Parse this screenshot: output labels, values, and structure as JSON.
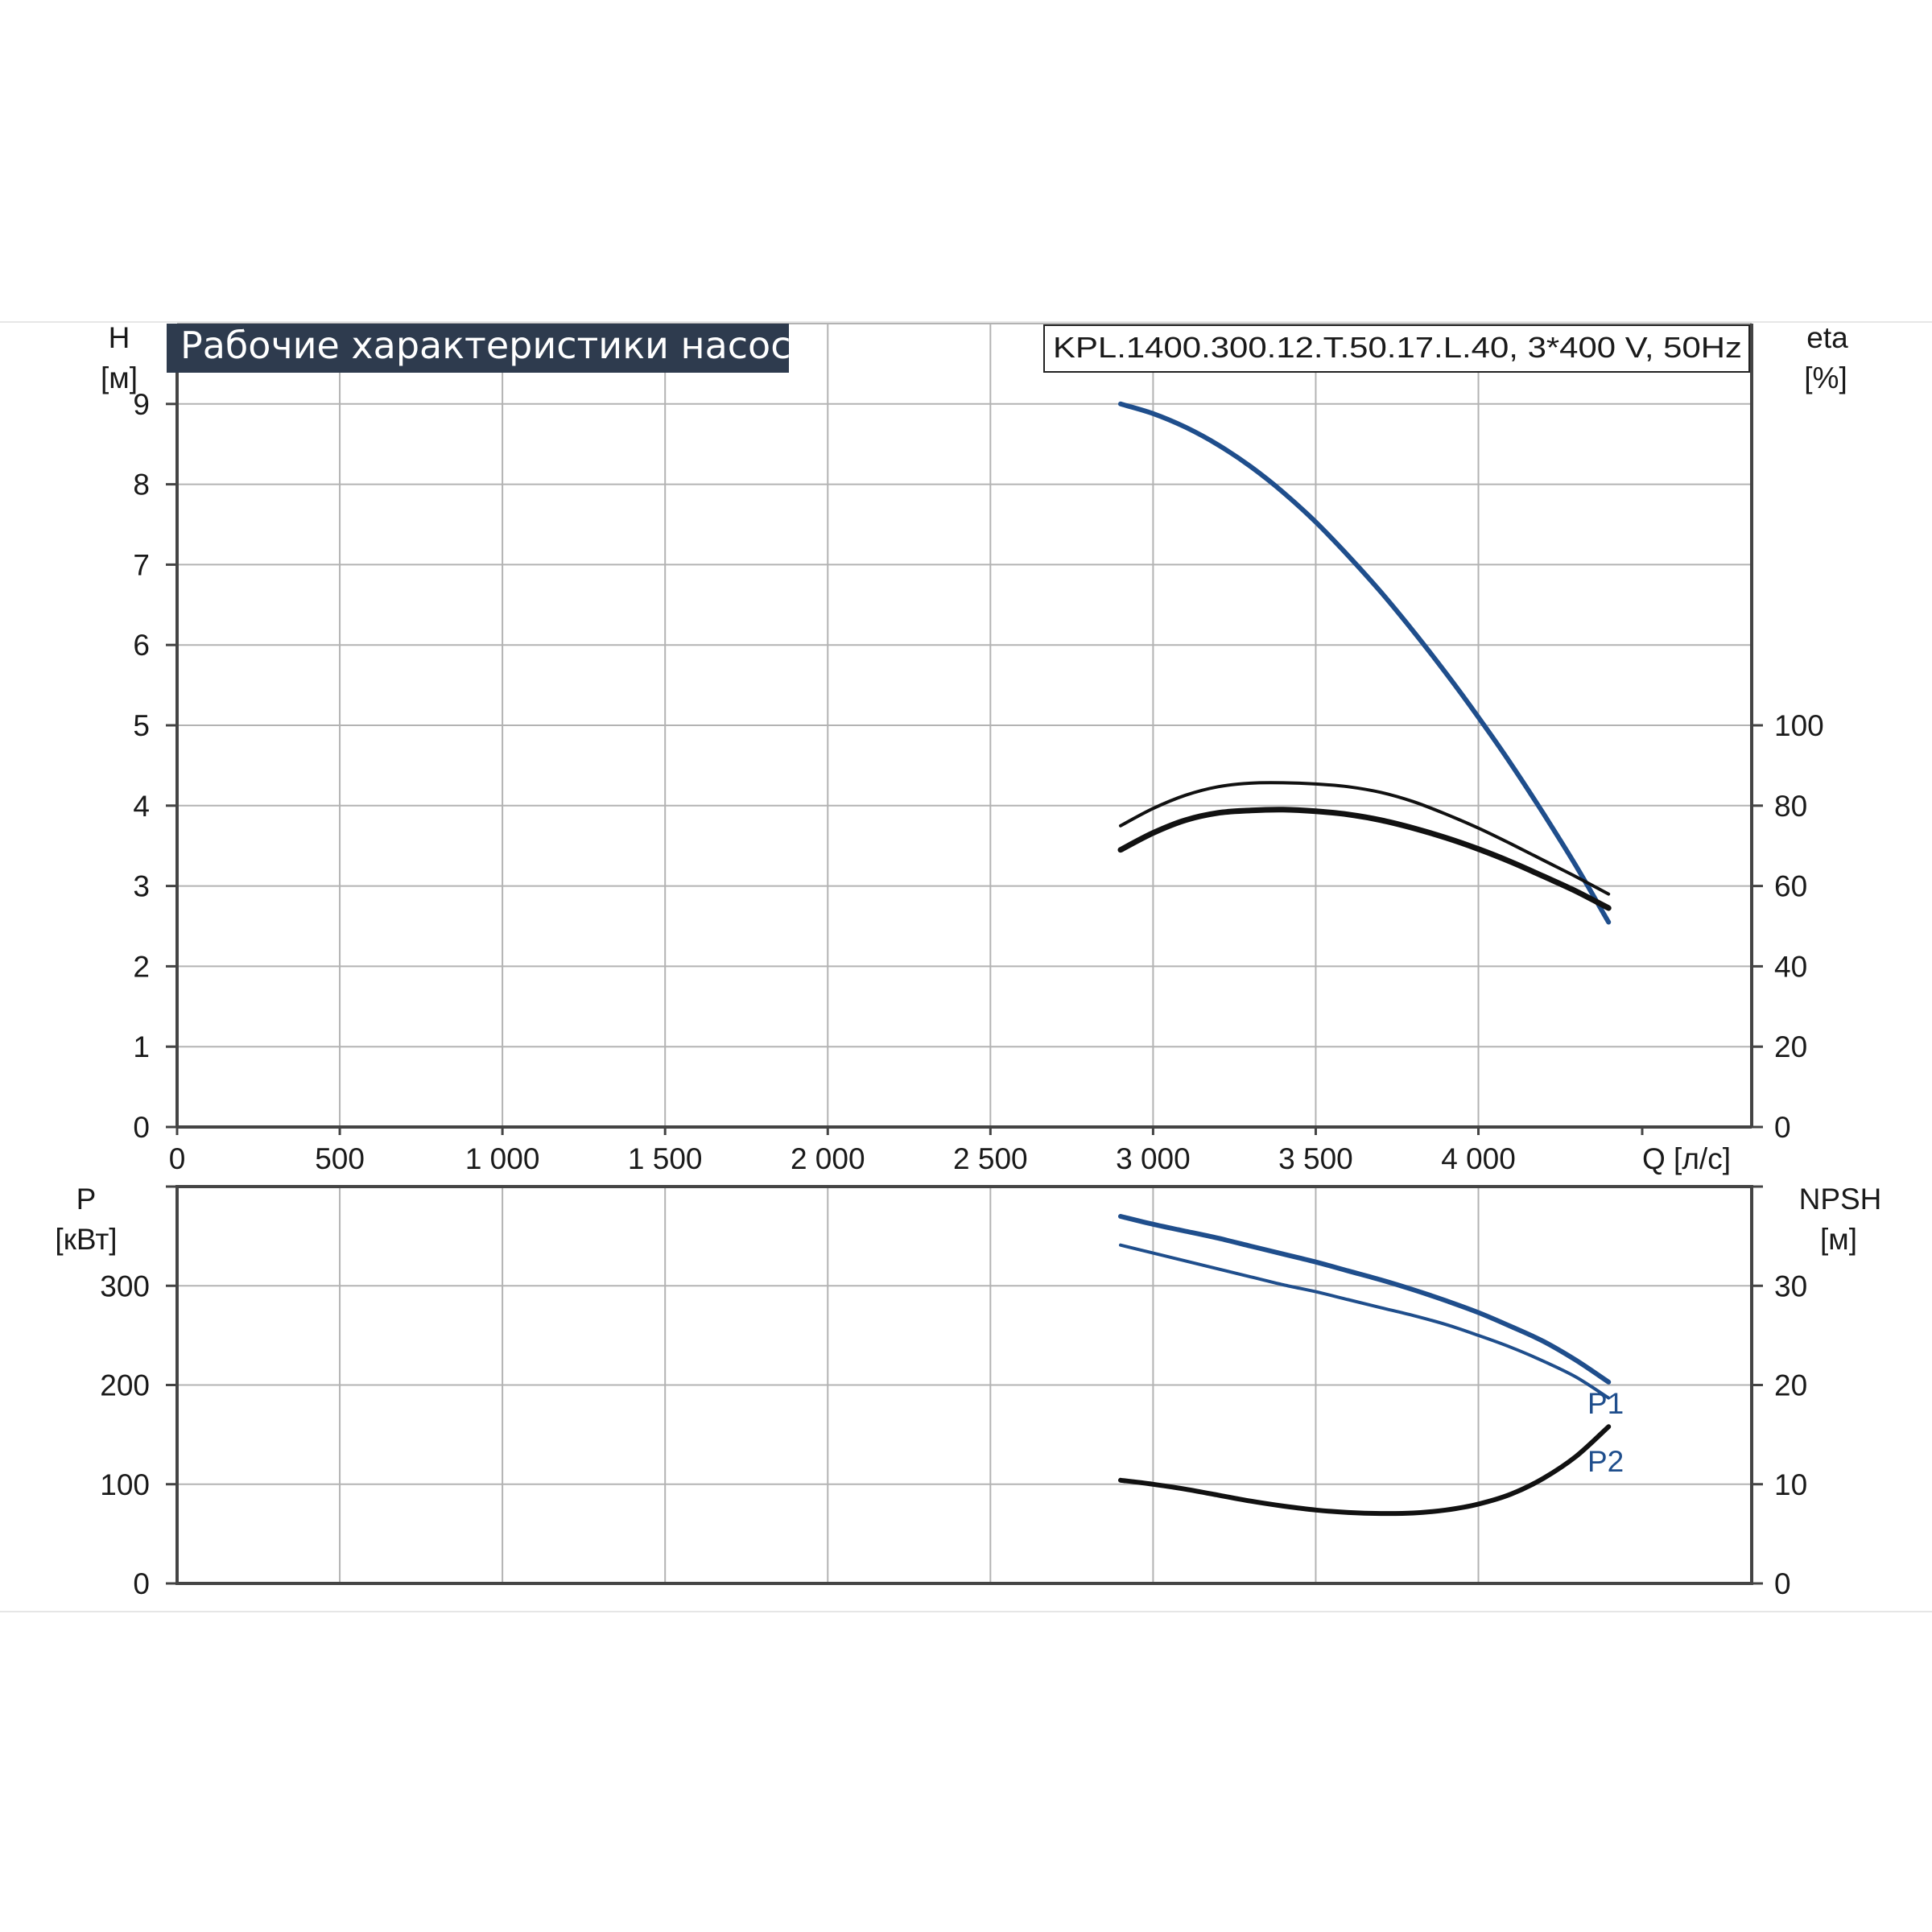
{
  "title": "Рабочие характеристики насоса",
  "model": "KPL.1400.300.12.T.50.17.L.40, 3*400 V, 50Hz",
  "colors": {
    "title_bg": "#2e3b4e",
    "curve_blue": "#1f4e8c",
    "curve_black": "#111111",
    "grid": "#b3b3b3",
    "axis": "#444444"
  },
  "chart_data": [
    {
      "type": "line",
      "panel": "upper",
      "xlabel": "Q [л/с]",
      "x_ticks": [
        "0",
        "500",
        "1 000",
        "1 500",
        "2 000",
        "2 500",
        "3 000",
        "3 500",
        "4 000"
      ],
      "xlim": [
        0,
        4840
      ],
      "ylabel_left": {
        "name": "H",
        "unit": "[м]"
      },
      "ylabel_right": {
        "name": "eta",
        "unit": "[%]"
      },
      "y_left_ticks": [
        "0",
        "1",
        "2",
        "3",
        "4",
        "5",
        "6",
        "7",
        "8",
        "9"
      ],
      "y_left_lim": [
        0,
        10
      ],
      "y_right_ticks": [
        "0",
        "20",
        "40",
        "60",
        "80",
        "100"
      ],
      "y_right_lim": [
        0,
        200
      ],
      "grid": true,
      "series": [
        {
          "axis": "left",
          "color": "#1f4e8c",
          "x": [
            2900,
            3000,
            3100,
            3200,
            3300,
            3400,
            3500,
            3600,
            3700,
            3800,
            3900,
            4000,
            4100,
            4200,
            4300,
            4400
          ],
          "y": [
            9.0,
            8.88,
            8.71,
            8.49,
            8.22,
            7.9,
            7.53,
            7.11,
            6.66,
            6.17,
            5.65,
            5.1,
            4.52,
            3.9,
            3.25,
            2.55
          ]
        },
        {
          "axis": "right",
          "color": "#111111",
          "x": [
            2900,
            3000,
            3100,
            3200,
            3300,
            3400,
            3500,
            3600,
            3700,
            3800,
            3900,
            4000,
            4100,
            4200,
            4300,
            4400
          ],
          "y": [
            75.0,
            79.3,
            82.6,
            84.7,
            85.6,
            85.7,
            85.4,
            84.7,
            83.3,
            81.0,
            77.9,
            74.4,
            70.5,
            66.4,
            62.3,
            58.0
          ]
        },
        {
          "axis": "right",
          "color": "#111111",
          "x": [
            2900,
            3000,
            3100,
            3200,
            3300,
            3400,
            3500,
            3600,
            3700,
            3800,
            3900,
            4000,
            4100,
            4200,
            4300,
            4400
          ],
          "y": [
            69.0,
            73.2,
            76.4,
            78.2,
            78.8,
            79.0,
            78.6,
            77.8,
            76.4,
            74.4,
            72.0,
            69.2,
            66.0,
            62.4,
            58.7,
            54.5
          ]
        }
      ]
    },
    {
      "type": "line",
      "panel": "lower",
      "xlim": [
        0,
        4840
      ],
      "ylabel_left": {
        "name": "P",
        "unit": "[кВт]"
      },
      "ylabel_right": {
        "name": "NPSH",
        "unit": "[м]"
      },
      "y_left_ticks": [
        "0",
        "100",
        "200",
        "300"
      ],
      "y_left_lim": [
        0,
        400
      ],
      "y_right_ticks": [
        "0",
        "10",
        "20",
        "30"
      ],
      "y_right_lim": [
        0,
        40
      ],
      "grid": true,
      "series": [
        {
          "name": "P1",
          "axis": "left",
          "color": "#1f4e8c",
          "x": [
            2900,
            3000,
            3100,
            3200,
            3300,
            3400,
            3500,
            3600,
            3700,
            3800,
            3900,
            4000,
            4100,
            4200,
            4300,
            4400
          ],
          "y": [
            370,
            362,
            355,
            348,
            340,
            332,
            324,
            315,
            306,
            296,
            285,
            273,
            259,
            244,
            225,
            203
          ]
        },
        {
          "name": "P2",
          "axis": "left",
          "color": "#1f4e8c",
          "x": [
            2900,
            3000,
            3100,
            3200,
            3300,
            3400,
            3500,
            3600,
            3700,
            3800,
            3900,
            4000,
            4100,
            4200,
            4300,
            4400
          ],
          "y": [
            341,
            333,
            325,
            317,
            309,
            301,
            294,
            286,
            278,
            270,
            261,
            250,
            238,
            224,
            208,
            187
          ]
        },
        {
          "axis": "right",
          "color": "#111111",
          "x": [
            2900,
            3000,
            3100,
            3200,
            3300,
            3400,
            3500,
            3600,
            3700,
            3800,
            3900,
            4000,
            4100,
            4200,
            4300,
            4400
          ],
          "y": [
            10.4,
            10.0,
            9.5,
            8.9,
            8.3,
            7.8,
            7.4,
            7.15,
            7.05,
            7.1,
            7.4,
            8.0,
            9.0,
            10.6,
            12.8,
            15.8
          ]
        }
      ]
    }
  ]
}
